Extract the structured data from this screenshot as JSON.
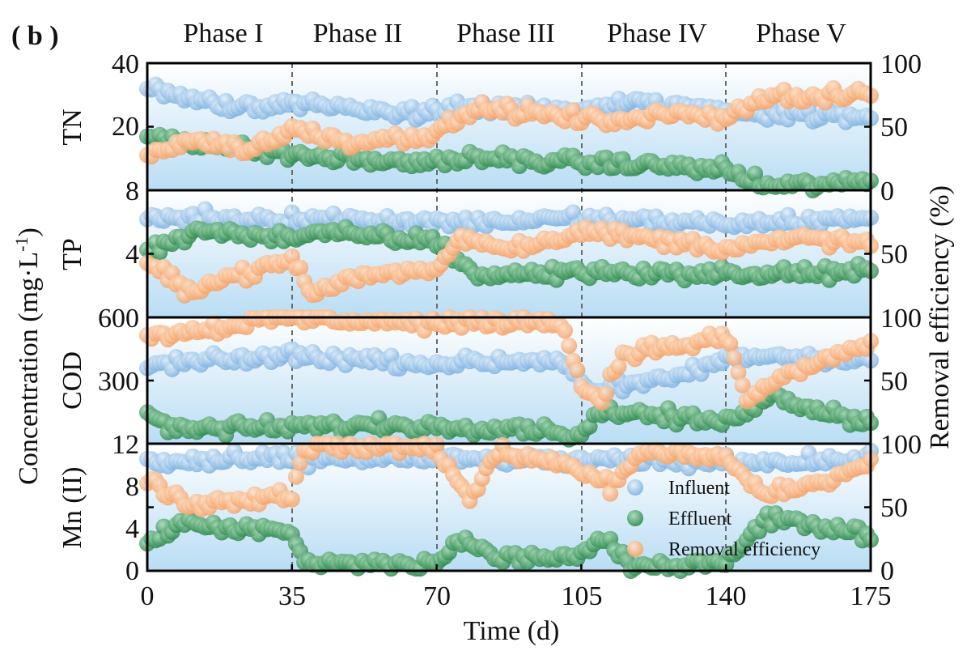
{
  "chart_data": {
    "type": "scatter",
    "panel_label": "( b )",
    "x_label": "Time (d)",
    "x_range": [
      0,
      175
    ],
    "x_ticks": [
      "0",
      "35",
      "70",
      "105",
      "140",
      "175"
    ],
    "phase_boundaries": [
      35,
      70,
      105,
      140
    ],
    "phases": [
      "Phase I",
      "Phase II",
      "Phase III",
      "Phase IV",
      "Phase V"
    ],
    "left_axis_title": "Concentration (mg·L",
    "left_axis_title_sup": "-1",
    "left_axis_title_end": ")",
    "right_axis_title": "Removal efficiency (%)",
    "legend": [
      "Influent",
      "Effluent",
      "Removal efficiency"
    ],
    "legend_location": "lower-right of bottom panel",
    "colors": {
      "influent": "#8fbde6",
      "effluent": "#3f9a60",
      "removal": "#f6b07c",
      "background_top": "#ffffff",
      "background_bottom": "#b9ddf4"
    },
    "panels": [
      {
        "name": "TN",
        "y_range": [
          8,
          40
        ],
        "y_ticks": [
          "40",
          "20",
          "8"
        ],
        "y_tick_values": [
          40,
          20,
          8
        ],
        "right_ticks": [
          "100",
          "50",
          "0"
        ],
        "influent_anchors": [
          [
            0,
            34
          ],
          [
            20,
            29
          ],
          [
            40,
            30
          ],
          [
            60,
            27
          ],
          [
            80,
            29
          ],
          [
            100,
            28
          ],
          [
            118,
            30
          ],
          [
            140,
            28
          ],
          [
            160,
            27
          ],
          [
            175,
            26
          ]
        ],
        "effluent_anchors": [
          [
            0,
            22
          ],
          [
            20,
            19
          ],
          [
            35,
            17
          ],
          [
            60,
            15
          ],
          [
            80,
            16
          ],
          [
            105,
            15
          ],
          [
            130,
            14
          ],
          [
            140,
            13
          ],
          [
            150,
            9
          ],
          [
            175,
            10
          ]
        ],
        "removal_anchors": [
          [
            0,
            28
          ],
          [
            10,
            40
          ],
          [
            25,
            32
          ],
          [
            35,
            48
          ],
          [
            50,
            38
          ],
          [
            70,
            45
          ],
          [
            80,
            65
          ],
          [
            100,
            58
          ],
          [
            110,
            55
          ],
          [
            130,
            60
          ],
          [
            140,
            58
          ],
          [
            150,
            75
          ],
          [
            160,
            72
          ],
          [
            175,
            76
          ]
        ]
      },
      {
        "name": "TP",
        "y_range": [
          0,
          8
        ],
        "y_ticks": [
          "4"
        ],
        "y_tick_values": [
          4
        ],
        "right_ticks": [
          "100",
          "50"
        ],
        "influent_anchors": [
          [
            0,
            6.3
          ],
          [
            40,
            6.2
          ],
          [
            80,
            6.0
          ],
          [
            100,
            6.2
          ],
          [
            140,
            5.9
          ],
          [
            175,
            6.2
          ]
        ],
        "effluent_anchors": [
          [
            0,
            4.3
          ],
          [
            15,
            5.5
          ],
          [
            35,
            5.0
          ],
          [
            45,
            5.3
          ],
          [
            70,
            4.8
          ],
          [
            80,
            2.6
          ],
          [
            105,
            2.9
          ],
          [
            140,
            2.7
          ],
          [
            175,
            2.9
          ]
        ],
        "removal_anchors": [
          [
            0,
            42
          ],
          [
            10,
            22
          ],
          [
            20,
            32
          ],
          [
            35,
            45
          ],
          [
            40,
            18
          ],
          [
            50,
            32
          ],
          [
            70,
            38
          ],
          [
            75,
            62
          ],
          [
            90,
            55
          ],
          [
            105,
            68
          ],
          [
            140,
            55
          ],
          [
            160,
            62
          ],
          [
            175,
            58
          ]
        ]
      },
      {
        "name": "COD",
        "y_range": [
          0,
          600
        ],
        "y_ticks": [
          "600",
          "300"
        ],
        "y_tick_values": [
          600,
          300
        ],
        "right_ticks": [
          "100",
          "50"
        ],
        "influent_anchors": [
          [
            0,
            370
          ],
          [
            35,
            420
          ],
          [
            70,
            380
          ],
          [
            100,
            400
          ],
          [
            108,
            250
          ],
          [
            125,
            300
          ],
          [
            140,
            400
          ],
          [
            150,
            420
          ],
          [
            175,
            400
          ]
        ],
        "effluent_anchors": [
          [
            0,
            150
          ],
          [
            5,
            70
          ],
          [
            35,
            80
          ],
          [
            60,
            90
          ],
          [
            70,
            80
          ],
          [
            90,
            80
          ],
          [
            105,
            40
          ],
          [
            110,
            160
          ],
          [
            140,
            100
          ],
          [
            150,
            230
          ],
          [
            175,
            100
          ]
        ],
        "removal_anchors": [
          [
            0,
            85
          ],
          [
            35,
            100
          ],
          [
            70,
            95
          ],
          [
            100,
            98
          ],
          [
            105,
            45
          ],
          [
            110,
            35
          ],
          [
            115,
            72
          ],
          [
            130,
            78
          ],
          [
            140,
            85
          ],
          [
            145,
            35
          ],
          [
            155,
            55
          ],
          [
            175,
            80
          ]
        ]
      },
      {
        "name": "Mn (II)",
        "y_range": [
          0,
          12
        ],
        "y_ticks": [
          "12",
          "8",
          "4",
          "0"
        ],
        "y_tick_values": [
          12,
          8,
          4,
          0
        ],
        "right_ticks": [
          "100",
          "50",
          "0"
        ],
        "influent_anchors": [
          [
            0,
            10.2
          ],
          [
            35,
            10.6
          ],
          [
            70,
            10.6
          ],
          [
            105,
            10.4
          ],
          [
            140,
            10.3
          ],
          [
            175,
            10.5
          ]
        ],
        "effluent_anchors": [
          [
            0,
            3.0
          ],
          [
            10,
            4.5
          ],
          [
            35,
            3.5
          ],
          [
            38,
            0.7
          ],
          [
            70,
            0.6
          ],
          [
            75,
            3.0
          ],
          [
            85,
            1.2
          ],
          [
            105,
            1.4
          ],
          [
            110,
            3.0
          ],
          [
            118,
            0.2
          ],
          [
            140,
            1.0
          ],
          [
            150,
            5.0
          ],
          [
            175,
            3.5
          ]
        ],
        "removal_anchors": [
          [
            0,
            72
          ],
          [
            10,
            52
          ],
          [
            35,
            60
          ],
          [
            38,
            98
          ],
          [
            70,
            97
          ],
          [
            78,
            55
          ],
          [
            85,
            95
          ],
          [
            105,
            80
          ],
          [
            112,
            65
          ],
          [
            120,
            95
          ],
          [
            140,
            88
          ],
          [
            150,
            60
          ],
          [
            165,
            70
          ],
          [
            175,
            85
          ]
        ]
      }
    ]
  }
}
